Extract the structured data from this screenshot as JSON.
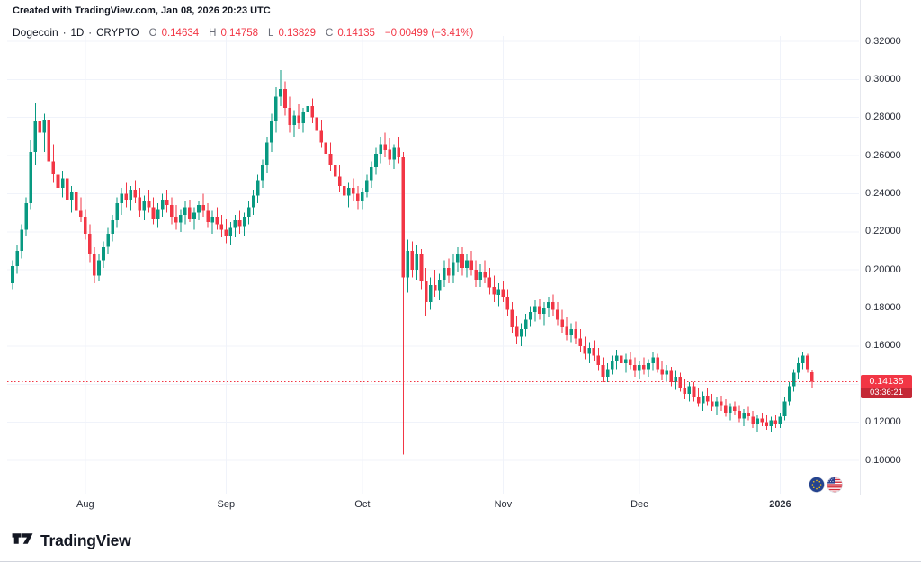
{
  "attribution": "Created with TradingView.com, Jan 08, 2026 20:23 UTC",
  "legend": {
    "symbol": "Dogecoin",
    "separator": "·",
    "interval": "1D",
    "market": "CRYPTO",
    "ohlc": {
      "o_label": "O",
      "o_value": "0.14634",
      "h_label": "H",
      "h_value": "0.14758",
      "l_label": "L",
      "l_value": "0.13829",
      "c_label": "C",
      "c_value": "0.14135",
      "change": "−0.00499 (−3.41%)"
    }
  },
  "last_price_badge": {
    "price": "0.14135",
    "countdown": "03:36:21"
  },
  "footer": {
    "logo_text": "TradingView"
  },
  "colors": {
    "up": "#089981",
    "down": "#F23645",
    "grid": "#f0f3fa",
    "badge": "#F23645"
  },
  "chart_data": {
    "type": "candlestick",
    "title": "Dogecoin · 1D · CRYPTO",
    "interval": "1D",
    "ohlc_order": [
      "open",
      "high",
      "low",
      "close"
    ],
    "up_color": "#089981",
    "down_color": "#F23645",
    "last_price": 0.14135,
    "countdown": "03:36:21",
    "current_bar": {
      "open": 0.14634,
      "high": 0.14758,
      "low": 0.13829,
      "close": 0.14135,
      "change": -0.00499,
      "change_percent": -3.41
    },
    "price_axis": {
      "min": 0.1,
      "max": 0.32,
      "tick_step": 0.02,
      "ticks": [
        {
          "value": 0.32,
          "label": "0.32000"
        },
        {
          "value": 0.3,
          "label": "0.30000"
        },
        {
          "value": 0.28,
          "label": "0.28000"
        },
        {
          "value": 0.26,
          "label": "0.26000"
        },
        {
          "value": 0.24,
          "label": "0.24000"
        },
        {
          "value": 0.22,
          "label": "0.22000"
        },
        {
          "value": 0.2,
          "label": "0.20000"
        },
        {
          "value": 0.18,
          "label": "0.18000"
        },
        {
          "value": 0.16,
          "label": "0.16000"
        },
        {
          "value": 0.14,
          "label": "0.14000"
        },
        {
          "value": 0.12,
          "label": "0.12000"
        },
        {
          "value": 0.1,
          "label": "0.10000"
        }
      ]
    },
    "time_axis": {
      "ticks": [
        {
          "index": 16,
          "label": "Aug"
        },
        {
          "index": 47,
          "label": "Sep"
        },
        {
          "index": 77,
          "label": "Oct"
        },
        {
          "index": 108,
          "label": "Nov"
        },
        {
          "index": 138,
          "label": "Dec"
        },
        {
          "index": 169,
          "label": "2026"
        }
      ]
    },
    "candles": [
      [
        0.193,
        0.205,
        0.19,
        0.202
      ],
      [
        0.202,
        0.213,
        0.198,
        0.21
      ],
      [
        0.21,
        0.224,
        0.206,
        0.221
      ],
      [
        0.221,
        0.238,
        0.218,
        0.235
      ],
      [
        0.235,
        0.268,
        0.232,
        0.262
      ],
      [
        0.262,
        0.288,
        0.255,
        0.278
      ],
      [
        0.278,
        0.285,
        0.268,
        0.272
      ],
      [
        0.272,
        0.282,
        0.262,
        0.279
      ],
      [
        0.279,
        0.281,
        0.252,
        0.257
      ],
      [
        0.257,
        0.266,
        0.246,
        0.25
      ],
      [
        0.25,
        0.258,
        0.24,
        0.243
      ],
      [
        0.243,
        0.252,
        0.238,
        0.248
      ],
      [
        0.248,
        0.25,
        0.234,
        0.237
      ],
      [
        0.237,
        0.244,
        0.23,
        0.241
      ],
      [
        0.241,
        0.243,
        0.228,
        0.231
      ],
      [
        0.231,
        0.238,
        0.225,
        0.228
      ],
      [
        0.228,
        0.232,
        0.216,
        0.219
      ],
      [
        0.219,
        0.224,
        0.204,
        0.208
      ],
      [
        0.208,
        0.212,
        0.193,
        0.197
      ],
      [
        0.197,
        0.208,
        0.194,
        0.205
      ],
      [
        0.205,
        0.215,
        0.201,
        0.212
      ],
      [
        0.212,
        0.222,
        0.208,
        0.219
      ],
      [
        0.219,
        0.229,
        0.215,
        0.226
      ],
      [
        0.226,
        0.238,
        0.222,
        0.235
      ],
      [
        0.235,
        0.243,
        0.229,
        0.24
      ],
      [
        0.24,
        0.246,
        0.233,
        0.237
      ],
      [
        0.237,
        0.244,
        0.231,
        0.242
      ],
      [
        0.242,
        0.247,
        0.235,
        0.238
      ],
      [
        0.238,
        0.243,
        0.228,
        0.231
      ],
      [
        0.231,
        0.239,
        0.226,
        0.236
      ],
      [
        0.236,
        0.242,
        0.23,
        0.233
      ],
      [
        0.233,
        0.238,
        0.224,
        0.227
      ],
      [
        0.227,
        0.235,
        0.222,
        0.232
      ],
      [
        0.232,
        0.24,
        0.228,
        0.237
      ],
      [
        0.237,
        0.242,
        0.23,
        0.234
      ],
      [
        0.234,
        0.238,
        0.224,
        0.228
      ],
      [
        0.228,
        0.234,
        0.221,
        0.225
      ],
      [
        0.225,
        0.232,
        0.22,
        0.229
      ],
      [
        0.229,
        0.236,
        0.224,
        0.233
      ],
      [
        0.233,
        0.237,
        0.225,
        0.227
      ],
      [
        0.227,
        0.233,
        0.221,
        0.23
      ],
      [
        0.23,
        0.236,
        0.226,
        0.234
      ],
      [
        0.234,
        0.24,
        0.228,
        0.231
      ],
      [
        0.231,
        0.235,
        0.222,
        0.225
      ],
      [
        0.225,
        0.231,
        0.219,
        0.228
      ],
      [
        0.228,
        0.233,
        0.221,
        0.224
      ],
      [
        0.224,
        0.229,
        0.217,
        0.221
      ],
      [
        0.221,
        0.227,
        0.214,
        0.218
      ],
      [
        0.218,
        0.225,
        0.213,
        0.222
      ],
      [
        0.222,
        0.229,
        0.217,
        0.226
      ],
      [
        0.226,
        0.231,
        0.219,
        0.223
      ],
      [
        0.223,
        0.23,
        0.218,
        0.228
      ],
      [
        0.228,
        0.236,
        0.224,
        0.233
      ],
      [
        0.233,
        0.242,
        0.229,
        0.239
      ],
      [
        0.239,
        0.25,
        0.235,
        0.247
      ],
      [
        0.247,
        0.258,
        0.243,
        0.255
      ],
      [
        0.255,
        0.27,
        0.251,
        0.267
      ],
      [
        0.267,
        0.282,
        0.262,
        0.278
      ],
      [
        0.278,
        0.296,
        0.272,
        0.291
      ],
      [
        0.291,
        0.305,
        0.286,
        0.295
      ],
      [
        0.295,
        0.299,
        0.281,
        0.285
      ],
      [
        0.285,
        0.291,
        0.272,
        0.276
      ],
      [
        0.276,
        0.284,
        0.27,
        0.281
      ],
      [
        0.281,
        0.287,
        0.274,
        0.277
      ],
      [
        0.277,
        0.285,
        0.272,
        0.283
      ],
      [
        0.283,
        0.289,
        0.276,
        0.286
      ],
      [
        0.286,
        0.29,
        0.277,
        0.28
      ],
      [
        0.28,
        0.285,
        0.27,
        0.273
      ],
      [
        0.273,
        0.279,
        0.264,
        0.267
      ],
      [
        0.267,
        0.273,
        0.258,
        0.261
      ],
      [
        0.261,
        0.267,
        0.252,
        0.255
      ],
      [
        0.255,
        0.261,
        0.246,
        0.249
      ],
      [
        0.249,
        0.255,
        0.241,
        0.244
      ],
      [
        0.244,
        0.25,
        0.236,
        0.239
      ],
      [
        0.239,
        0.246,
        0.233,
        0.243
      ],
      [
        0.243,
        0.248,
        0.236,
        0.24
      ],
      [
        0.24,
        0.244,
        0.232,
        0.236
      ],
      [
        0.236,
        0.243,
        0.232,
        0.241
      ],
      [
        0.241,
        0.25,
        0.238,
        0.247
      ],
      [
        0.247,
        0.257,
        0.243,
        0.254
      ],
      [
        0.254,
        0.264,
        0.25,
        0.261
      ],
      [
        0.261,
        0.27,
        0.256,
        0.266
      ],
      [
        0.266,
        0.272,
        0.259,
        0.263
      ],
      [
        0.263,
        0.269,
        0.255,
        0.258
      ],
      [
        0.258,
        0.266,
        0.253,
        0.264
      ],
      [
        0.264,
        0.27,
        0.256,
        0.259
      ],
      [
        0.259,
        0.262,
        0.103,
        0.196
      ],
      [
        0.196,
        0.216,
        0.188,
        0.21
      ],
      [
        0.21,
        0.215,
        0.196,
        0.2
      ],
      [
        0.2,
        0.213,
        0.195,
        0.208
      ],
      [
        0.208,
        0.211,
        0.19,
        0.194
      ],
      [
        0.194,
        0.201,
        0.176,
        0.183
      ],
      [
        0.183,
        0.196,
        0.179,
        0.192
      ],
      [
        0.192,
        0.2,
        0.186,
        0.189
      ],
      [
        0.189,
        0.198,
        0.184,
        0.195
      ],
      [
        0.195,
        0.205,
        0.191,
        0.201
      ],
      [
        0.201,
        0.206,
        0.193,
        0.197
      ],
      [
        0.197,
        0.208,
        0.193,
        0.204
      ],
      [
        0.204,
        0.212,
        0.199,
        0.208
      ],
      [
        0.208,
        0.212,
        0.197,
        0.201
      ],
      [
        0.201,
        0.208,
        0.196,
        0.205
      ],
      [
        0.205,
        0.21,
        0.197,
        0.2
      ],
      [
        0.2,
        0.205,
        0.191,
        0.195
      ],
      [
        0.195,
        0.203,
        0.191,
        0.199
      ],
      [
        0.199,
        0.205,
        0.193,
        0.196
      ],
      [
        0.196,
        0.201,
        0.187,
        0.191
      ],
      [
        0.191,
        0.197,
        0.183,
        0.187
      ],
      [
        0.187,
        0.193,
        0.181,
        0.19
      ],
      [
        0.19,
        0.194,
        0.183,
        0.186
      ],
      [
        0.186,
        0.19,
        0.176,
        0.179
      ],
      [
        0.179,
        0.183,
        0.167,
        0.17
      ],
      [
        0.17,
        0.176,
        0.161,
        0.165
      ],
      [
        0.165,
        0.172,
        0.16,
        0.169
      ],
      [
        0.169,
        0.177,
        0.165,
        0.174
      ],
      [
        0.174,
        0.181,
        0.17,
        0.178
      ],
      [
        0.178,
        0.184,
        0.173,
        0.181
      ],
      [
        0.181,
        0.185,
        0.174,
        0.177
      ],
      [
        0.177,
        0.183,
        0.171,
        0.18
      ],
      [
        0.18,
        0.186,
        0.175,
        0.183
      ],
      [
        0.183,
        0.187,
        0.176,
        0.179
      ],
      [
        0.179,
        0.183,
        0.171,
        0.174
      ],
      [
        0.174,
        0.179,
        0.167,
        0.17
      ],
      [
        0.17,
        0.175,
        0.163,
        0.166
      ],
      [
        0.166,
        0.172,
        0.162,
        0.169
      ],
      [
        0.169,
        0.173,
        0.161,
        0.164
      ],
      [
        0.164,
        0.169,
        0.157,
        0.16
      ],
      [
        0.16,
        0.165,
        0.153,
        0.156
      ],
      [
        0.156,
        0.162,
        0.151,
        0.159
      ],
      [
        0.159,
        0.163,
        0.152,
        0.155
      ],
      [
        0.155,
        0.159,
        0.147,
        0.15
      ],
      [
        0.15,
        0.154,
        0.141,
        0.144
      ],
      [
        0.144,
        0.151,
        0.141,
        0.148
      ],
      [
        0.148,
        0.155,
        0.145,
        0.152
      ],
      [
        0.152,
        0.158,
        0.148,
        0.155
      ],
      [
        0.155,
        0.158,
        0.149,
        0.151
      ],
      [
        0.151,
        0.156,
        0.146,
        0.153
      ],
      [
        0.153,
        0.157,
        0.148,
        0.15
      ],
      [
        0.15,
        0.154,
        0.144,
        0.147
      ],
      [
        0.147,
        0.152,
        0.143,
        0.15
      ],
      [
        0.15,
        0.154,
        0.145,
        0.148
      ],
      [
        0.148,
        0.153,
        0.144,
        0.151
      ],
      [
        0.151,
        0.157,
        0.147,
        0.154
      ],
      [
        0.154,
        0.156,
        0.146,
        0.148
      ],
      [
        0.148,
        0.152,
        0.142,
        0.145
      ],
      [
        0.145,
        0.15,
        0.141,
        0.147
      ],
      [
        0.147,
        0.149,
        0.139,
        0.141
      ],
      [
        0.141,
        0.147,
        0.137,
        0.144
      ],
      [
        0.144,
        0.146,
        0.136,
        0.138
      ],
      [
        0.138,
        0.143,
        0.132,
        0.135
      ],
      [
        0.135,
        0.141,
        0.131,
        0.139
      ],
      [
        0.139,
        0.141,
        0.131,
        0.133
      ],
      [
        0.133,
        0.138,
        0.128,
        0.13
      ],
      [
        0.13,
        0.136,
        0.126,
        0.134
      ],
      [
        0.134,
        0.138,
        0.129,
        0.131
      ],
      [
        0.131,
        0.135,
        0.126,
        0.128
      ],
      [
        0.128,
        0.133,
        0.124,
        0.131
      ],
      [
        0.131,
        0.134,
        0.126,
        0.129
      ],
      [
        0.129,
        0.132,
        0.123,
        0.125
      ],
      [
        0.125,
        0.13,
        0.121,
        0.128
      ],
      [
        0.128,
        0.131,
        0.124,
        0.126
      ],
      [
        0.126,
        0.129,
        0.12,
        0.122
      ],
      [
        0.122,
        0.127,
        0.118,
        0.125
      ],
      [
        0.125,
        0.128,
        0.121,
        0.123
      ],
      [
        0.123,
        0.126,
        0.117,
        0.119
      ],
      [
        0.119,
        0.124,
        0.115,
        0.122
      ],
      [
        0.122,
        0.125,
        0.118,
        0.12
      ],
      [
        0.12,
        0.124,
        0.116,
        0.118
      ],
      [
        0.118,
        0.123,
        0.115,
        0.121
      ],
      [
        0.121,
        0.124,
        0.117,
        0.119
      ],
      [
        0.119,
        0.125,
        0.117,
        0.123
      ],
      [
        0.123,
        0.133,
        0.121,
        0.131
      ],
      [
        0.131,
        0.141,
        0.129,
        0.139
      ],
      [
        0.139,
        0.148,
        0.136,
        0.146
      ],
      [
        0.146,
        0.154,
        0.143,
        0.151
      ],
      [
        0.151,
        0.157,
        0.148,
        0.155
      ],
      [
        0.155,
        0.156,
        0.146,
        0.148
      ],
      [
        0.14634,
        0.14758,
        0.13829,
        0.14135
      ]
    ]
  }
}
